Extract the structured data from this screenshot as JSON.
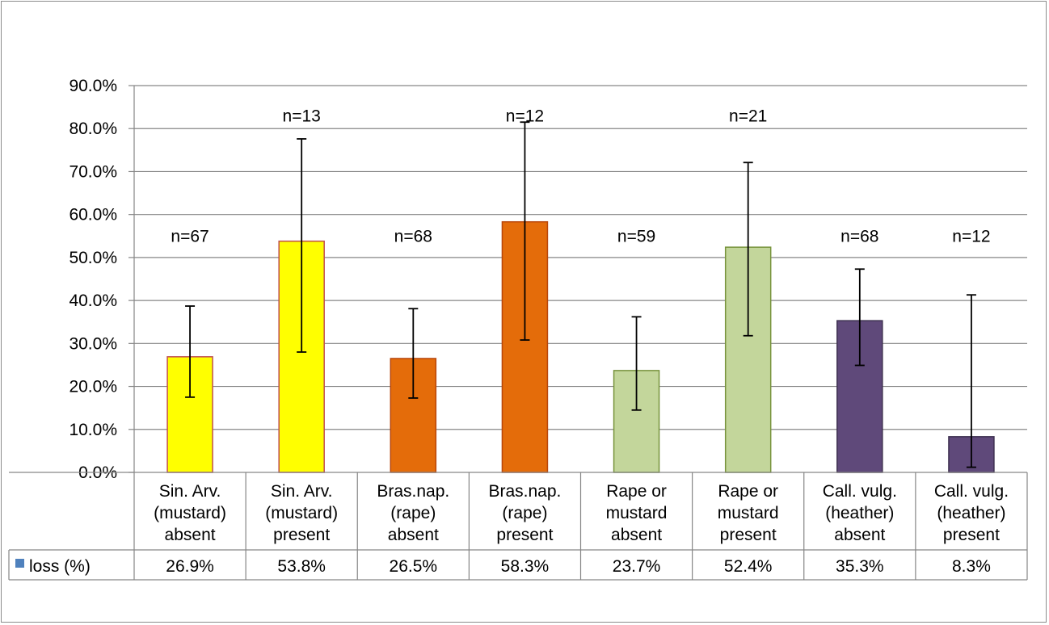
{
  "chart_data": {
    "type": "bar",
    "title": "",
    "xlabel": "",
    "ylabel": "",
    "ylim": [
      0,
      0.9
    ],
    "yticks": [
      "0.0%",
      "10.0%",
      "20.0%",
      "30.0%",
      "40.0%",
      "50.0%",
      "60.0%",
      "70.0%",
      "80.0%",
      "90.0%"
    ],
    "grid": true,
    "categories": [
      [
        "Sin. Arv.",
        "(mustard)",
        "absent"
      ],
      [
        "Sin. Arv.",
        "(mustard)",
        "present"
      ],
      [
        "Bras.nap.",
        "(rape)",
        "absent"
      ],
      [
        "Bras.nap.",
        "(rape)",
        "present"
      ],
      [
        "Rape or",
        "mustard",
        "absent"
      ],
      [
        "Rape or",
        "mustard",
        "present"
      ],
      [
        "Call. vulg.",
        "(heather)",
        "absent"
      ],
      [
        "Call. vulg.",
        "(heather)",
        "present"
      ]
    ],
    "series": [
      {
        "name": "loss (%)",
        "legend_color": "#4f81bd",
        "values": [
          0.269,
          0.538,
          0.265,
          0.583,
          0.237,
          0.524,
          0.353,
          0.083
        ],
        "table_values": [
          "26.9%",
          "53.8%",
          "26.5%",
          "58.3%",
          "23.7%",
          "52.4%",
          "35.3%",
          "8.3%"
        ],
        "error_low": [
          0.175,
          0.28,
          0.173,
          0.308,
          0.145,
          0.318,
          0.249,
          0.012
        ],
        "error_high": [
          0.387,
          0.776,
          0.381,
          0.815,
          0.362,
          0.721,
          0.473,
          0.413
        ],
        "bar_colors": [
          "#ffff00",
          "#ffff00",
          "#e46c0a",
          "#e46c0a",
          "#c3d69b",
          "#c3d69b",
          "#5f497a",
          "#5f497a"
        ],
        "bar_outline_colors": [
          "#c0504d",
          "#c0504d",
          "#b8460a",
          "#b8460a",
          "#77933c",
          "#77933c",
          "#3f3151",
          "#3f3151"
        ]
      }
    ],
    "annotations": [
      "n=67",
      "n=13",
      "n=68",
      "n=12",
      "n=59",
      "n=21",
      "n=68",
      "n=12"
    ],
    "annotation_levels": [
      0.55,
      0.83,
      0.55,
      0.83,
      0.55,
      0.83,
      0.55,
      0.55
    ],
    "legend_placement": "data-table"
  }
}
